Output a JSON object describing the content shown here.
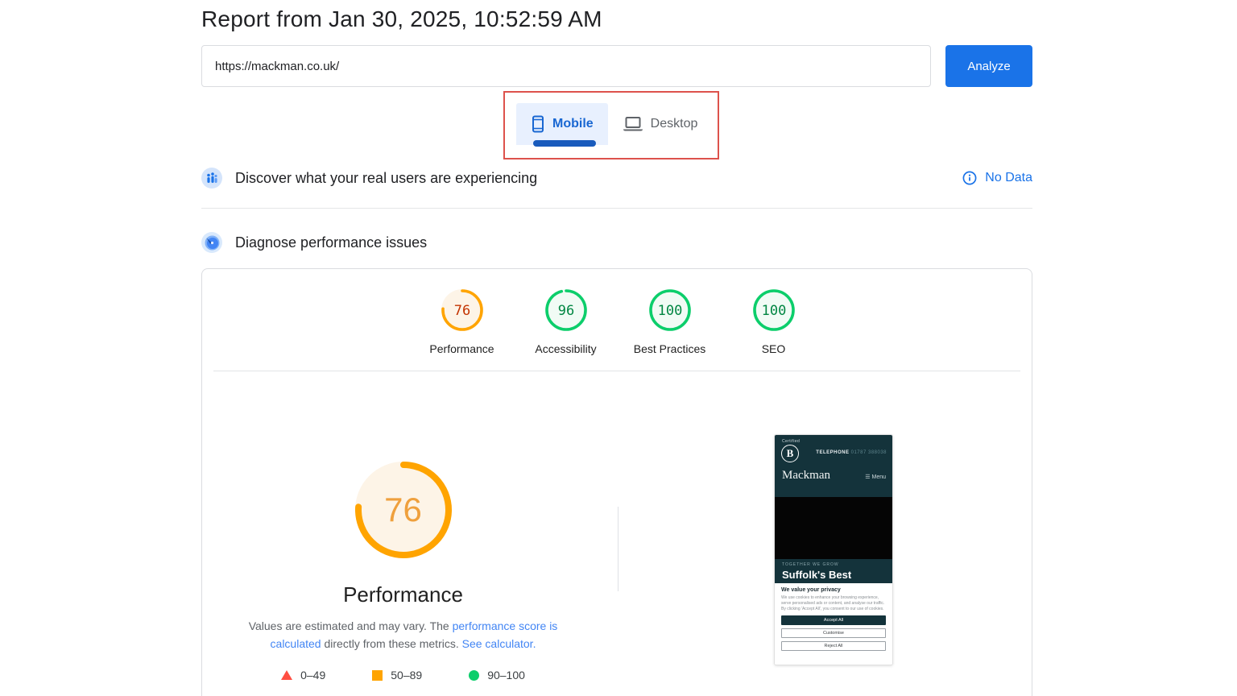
{
  "page": {
    "title": "Report from Jan 30, 2025, 10:52:59 AM"
  },
  "analyzer": {
    "url_value": "https://mackman.co.uk/",
    "analyze_label": "Analyze"
  },
  "tabs": {
    "mobile_label": "Mobile",
    "desktop_label": "Desktop"
  },
  "field_data": {
    "title": "Discover what your real users are experiencing",
    "status_label": "No Data"
  },
  "lab_data": {
    "title": "Diagnose performance issues"
  },
  "chart_data": {
    "type": "gauge-set",
    "categories": [
      "Performance",
      "Accessibility",
      "Best Practices",
      "SEO"
    ],
    "values": [
      76,
      96,
      100,
      100
    ],
    "statuses": [
      "average",
      "pass",
      "pass",
      "pass"
    ],
    "range": [
      0,
      100
    ]
  },
  "scores": {
    "categories": [
      {
        "label": "Performance",
        "value": 76,
        "status": "average"
      },
      {
        "label": "Accessibility",
        "value": 96,
        "status": "pass"
      },
      {
        "label": "Best Practices",
        "value": 100,
        "status": "pass"
      },
      {
        "label": "SEO",
        "value": 100,
        "status": "pass"
      }
    ]
  },
  "performance_section": {
    "score": 76,
    "status": "average",
    "title": "Performance",
    "desc_part1": "Values are estimated and may vary. The ",
    "link1": "performance score is calculated",
    "desc_part2": " directly from these metrics. ",
    "link2": "See calculator.",
    "legend": [
      {
        "range": "0–49",
        "shape": "triangle"
      },
      {
        "range": "50–89",
        "shape": "square"
      },
      {
        "range": "90–100",
        "shape": "circle"
      }
    ]
  },
  "thumbnail": {
    "certified_label": "Certified",
    "logo_letter": "B",
    "telephone_label": "TELEPHONE",
    "telephone_number": "01787 388038",
    "brand": "Mackman",
    "menu_label": "Menu",
    "tagline": "TOGETHER WE GROW",
    "headline": "Suffolk's Best",
    "cookie_title": "We value your privacy",
    "cookie_text": "We use cookies to enhance your browsing experience, serve personalised ads or content, and analyse our traffic. By clicking 'Accept All', you consent to our use of cookies.",
    "cookie_buttons": [
      "Accept All",
      "Customise",
      "Reject All"
    ]
  },
  "colors": {
    "accent_blue": "#1a73e8",
    "link_blue": "#4285f4",
    "annotation_red": "#dd524c",
    "status_palette": {
      "fail": {
        "ring": "#ff4e42",
        "tint": "#fdf0ef",
        "text": "#c5221f"
      },
      "average": {
        "ring": "#ffa400",
        "tint": "#fdf4e7",
        "text": "#c33300"
      },
      "pass": {
        "ring": "#0cce6b",
        "tint": "#f1fbf5",
        "text": "#018642"
      }
    },
    "big_gauge_text": "#efa03d"
  }
}
